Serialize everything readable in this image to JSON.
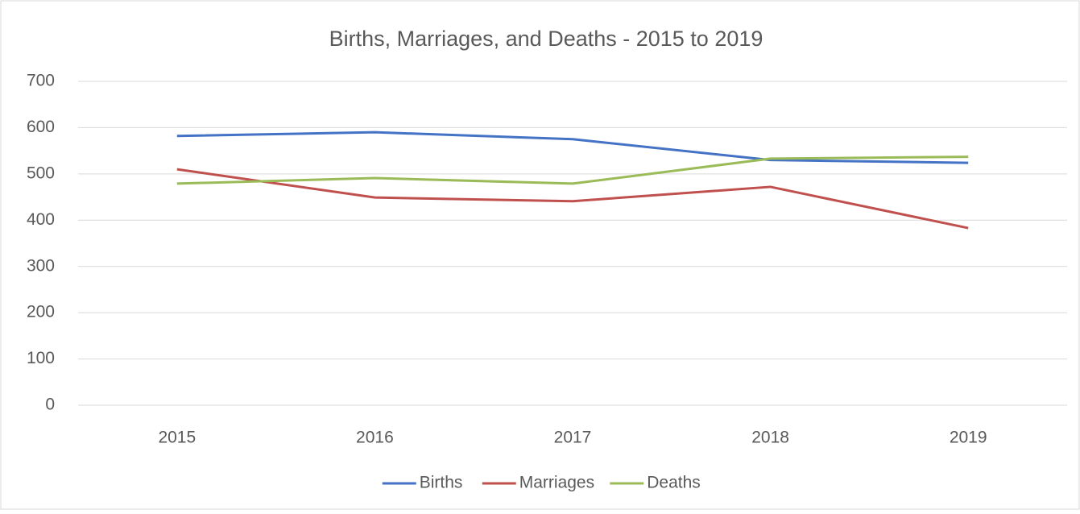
{
  "chart_data": {
    "type": "line",
    "title": "Births, Marriages, and Deaths  - 2015 to 2019",
    "categories": [
      "2015",
      "2016",
      "2017",
      "2018",
      "2019"
    ],
    "series": [
      {
        "name": "Births",
        "color": "#4472c4",
        "values": [
          582,
          590,
          575,
          530,
          524
        ]
      },
      {
        "name": "Marriages",
        "color": "#c0504d",
        "values": [
          510,
          449,
          441,
          472,
          383
        ]
      },
      {
        "name": "Deaths",
        "color": "#9bbb59",
        "values": [
          479,
          491,
          479,
          533,
          537
        ]
      }
    ],
    "ylim": [
      0,
      700
    ],
    "yticks": [
      0,
      100,
      200,
      300,
      400,
      500,
      600,
      700
    ],
    "grid": true,
    "legend": "bottom"
  }
}
